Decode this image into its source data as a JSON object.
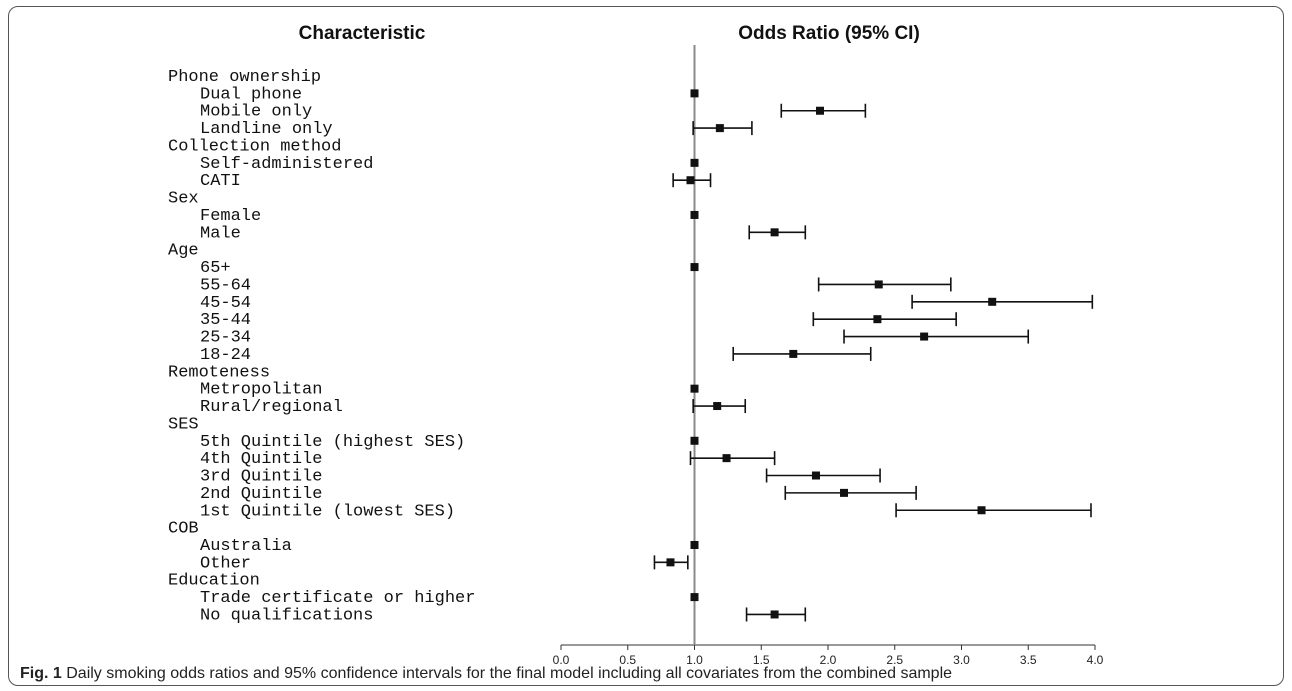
{
  "chart_data": {
    "type": "forest",
    "column_headers": {
      "left": "Characteristic",
      "right": "Odds Ratio (95% CI)"
    },
    "xlim": [
      0,
      4
    ],
    "x_ticks": [
      "0.0",
      "0.5",
      "1.0",
      "1.5",
      "2.0",
      "2.5",
      "3.0",
      "3.5",
      "4.0"
    ],
    "reference_line": 1.0,
    "rows": [
      {
        "label": "Phone ownership",
        "group": true
      },
      {
        "label": "Dual phone",
        "or": 1.0
      },
      {
        "label": "Mobile only",
        "or": 1.94,
        "lo": 1.65,
        "hi": 2.28
      },
      {
        "label": "Landline only",
        "or": 1.19,
        "lo": 0.99,
        "hi": 1.43
      },
      {
        "label": "Collection method",
        "group": true
      },
      {
        "label": "Self-administered",
        "or": 1.0
      },
      {
        "label": "CATI",
        "or": 0.97,
        "lo": 0.84,
        "hi": 1.12
      },
      {
        "label": "Sex",
        "group": true
      },
      {
        "label": "Female",
        "or": 1.0
      },
      {
        "label": "Male",
        "or": 1.6,
        "lo": 1.41,
        "hi": 1.83
      },
      {
        "label": "Age",
        "group": true
      },
      {
        "label": "65+",
        "or": 1.0
      },
      {
        "label": "55-64",
        "or": 2.38,
        "lo": 1.93,
        "hi": 2.92
      },
      {
        "label": "45-54",
        "or": 3.23,
        "lo": 2.63,
        "hi": 3.98
      },
      {
        "label": "35-44",
        "or": 2.37,
        "lo": 1.89,
        "hi": 2.96
      },
      {
        "label": "25-34",
        "or": 2.72,
        "lo": 2.12,
        "hi": 3.5
      },
      {
        "label": "18-24",
        "or": 1.74,
        "lo": 1.29,
        "hi": 2.32
      },
      {
        "label": "Remoteness",
        "group": true
      },
      {
        "label": "Metropolitan",
        "or": 1.0
      },
      {
        "label": "Rural/regional",
        "or": 1.17,
        "lo": 0.99,
        "hi": 1.38
      },
      {
        "label": "SES",
        "group": true
      },
      {
        "label": "5th Quintile (highest SES)",
        "or": 1.0
      },
      {
        "label": "4th Quintile",
        "or": 1.24,
        "lo": 0.97,
        "hi": 1.6
      },
      {
        "label": "3rd Quintile",
        "or": 1.91,
        "lo": 1.54,
        "hi": 2.39
      },
      {
        "label": "2nd Quintile",
        "or": 2.12,
        "lo": 1.68,
        "hi": 2.66
      },
      {
        "label": "1st Quintile (lowest SES)",
        "or": 3.15,
        "lo": 2.51,
        "hi": 3.97
      },
      {
        "label": "COB",
        "group": true
      },
      {
        "label": "Australia",
        "or": 1.0
      },
      {
        "label": "Other",
        "or": 0.82,
        "lo": 0.7,
        "hi": 0.95
      },
      {
        "label": "Education",
        "group": true
      },
      {
        "label": "Trade certificate or higher",
        "or": 1.0
      },
      {
        "label": "No qualifications",
        "or": 1.6,
        "lo": 1.39,
        "hi": 1.83
      }
    ]
  },
  "caption": {
    "label": "Fig. 1",
    "text": "Daily smoking odds ratios and 95% confidence intervals for the final model including all covariates from the combined sample"
  }
}
